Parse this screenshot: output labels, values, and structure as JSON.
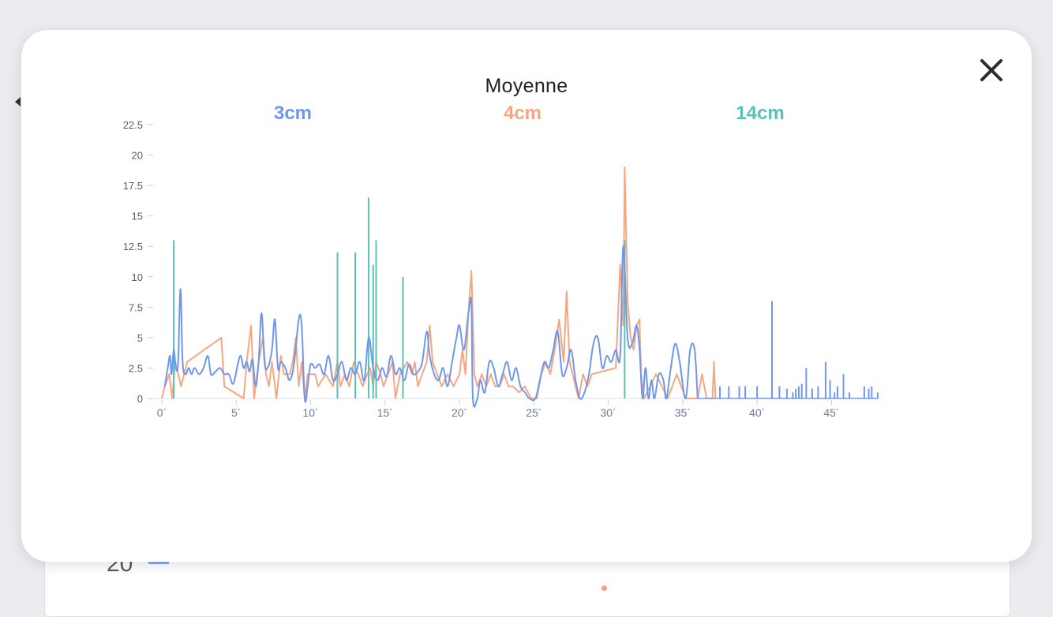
{
  "background": {
    "peek_value": "20"
  },
  "modal": {
    "close_icon": "close-icon"
  },
  "chart_data": {
    "type": "line",
    "title": "Moyenne",
    "xlabel": "",
    "ylabel": "",
    "xlim": [
      0,
      48
    ],
    "ylim": [
      0,
      22.5
    ],
    "grid": false,
    "legend_position": "top",
    "y_ticks": [
      "0",
      "2.5",
      "5",
      "7.5",
      "10",
      "12.5",
      "15",
      "17.5",
      "20",
      "22.5"
    ],
    "x_ticks": [
      "0´",
      "5´",
      "10´",
      "15´",
      "20´",
      "25´",
      "30´",
      "35´",
      "40´",
      "45´"
    ],
    "x_tick_values": [
      0,
      5,
      10,
      15,
      20,
      25,
      30,
      35,
      40,
      45
    ],
    "y_tick_values": [
      0,
      2.5,
      5,
      7.5,
      10,
      12.5,
      15,
      17.5,
      20,
      22.5
    ],
    "series": [
      {
        "name": "3cm",
        "color": "#6f97ee",
        "style": "smooth",
        "points": [
          [
            0.2,
            1
          ],
          [
            0.4,
            2.5
          ],
          [
            0.55,
            3.5
          ],
          [
            0.65,
            2
          ],
          [
            0.8,
            4
          ],
          [
            0.95,
            2.5
          ],
          [
            1.1,
            3
          ],
          [
            1.25,
            9
          ],
          [
            1.4,
            3
          ],
          [
            1.6,
            2
          ],
          [
            1.8,
            2.5
          ],
          [
            2,
            2
          ],
          [
            2.2,
            2.5
          ],
          [
            2.5,
            2
          ],
          [
            2.8,
            2.5
          ],
          [
            3.1,
            3.5
          ],
          [
            3.3,
            2
          ],
          [
            3.6,
            2.2
          ],
          [
            3.9,
            2.5
          ],
          [
            4.2,
            2
          ],
          [
            4.5,
            2
          ],
          [
            4.8,
            1.2
          ],
          [
            5.1,
            2.8
          ],
          [
            5.3,
            3.5
          ],
          [
            5.5,
            2.5
          ],
          [
            5.7,
            3
          ],
          [
            5.9,
            2.2
          ],
          [
            6.1,
            3.2
          ],
          [
            6.3,
            1
          ],
          [
            6.5,
            3
          ],
          [
            6.7,
            7
          ],
          [
            6.9,
            3
          ],
          [
            7.1,
            2.5
          ],
          [
            7.4,
            4
          ],
          [
            7.6,
            6.5
          ],
          [
            7.8,
            2.5
          ],
          [
            8,
            3
          ],
          [
            8.3,
            2.5
          ],
          [
            8.6,
            1.5
          ],
          [
            8.9,
            3
          ],
          [
            9.2,
            6.5
          ],
          [
            9.4,
            6
          ],
          [
            9.6,
            0
          ],
          [
            9.8,
            1
          ],
          [
            10,
            2.8
          ],
          [
            10.3,
            2.5
          ],
          [
            10.6,
            2.8
          ],
          [
            10.9,
            2
          ],
          [
            11.2,
            3.5
          ],
          [
            11.5,
            1.5
          ],
          [
            11.8,
            2
          ],
          [
            12.1,
            3
          ],
          [
            12.4,
            1.5
          ],
          [
            12.7,
            2.5
          ],
          [
            13,
            2
          ],
          [
            13.3,
            3
          ],
          [
            13.6,
            1.5
          ],
          [
            13.9,
            5
          ],
          [
            14.2,
            2.5
          ],
          [
            14.5,
            1.5
          ],
          [
            14.8,
            2.5
          ],
          [
            15.1,
            1.8
          ],
          [
            15.4,
            3.5
          ],
          [
            15.7,
            2
          ],
          [
            16,
            2.5
          ],
          [
            16.3,
            1.5
          ],
          [
            16.6,
            2.8
          ],
          [
            16.9,
            2
          ],
          [
            17.2,
            2.2
          ],
          [
            17.5,
            3
          ],
          [
            17.8,
            5.5
          ],
          [
            18,
            3.5
          ],
          [
            18.3,
            2
          ],
          [
            18.6,
            1.5
          ],
          [
            18.9,
            2.5
          ],
          [
            19.2,
            1
          ],
          [
            19.5,
            3
          ],
          [
            19.8,
            5
          ],
          [
            20,
            6
          ],
          [
            20.3,
            4
          ],
          [
            20.6,
            7
          ],
          [
            20.8,
            7.8
          ],
          [
            20.9,
            0
          ],
          [
            21.2,
            0
          ],
          [
            21.4,
            1.5
          ],
          [
            21.7,
            0.5
          ],
          [
            22,
            3
          ],
          [
            22.3,
            2.5
          ],
          [
            22.6,
            1
          ],
          [
            22.9,
            2
          ],
          [
            23.2,
            3
          ],
          [
            23.5,
            1.5
          ],
          [
            23.8,
            2.5
          ],
          [
            24.1,
            1
          ],
          [
            24.4,
            0.5
          ],
          [
            24.7,
            0
          ],
          [
            25.1,
            0
          ],
          [
            25.4,
            1.5
          ],
          [
            25.7,
            3
          ],
          [
            26,
            2.5
          ],
          [
            26.3,
            4
          ],
          [
            26.6,
            5.5
          ],
          [
            26.9,
            2
          ],
          [
            27.2,
            2.5
          ],
          [
            27.5,
            4
          ],
          [
            27.8,
            1.5
          ],
          [
            28.1,
            0
          ],
          [
            28.4,
            0.5
          ],
          [
            28.7,
            2
          ],
          [
            29,
            4.5
          ],
          [
            29.3,
            5
          ],
          [
            29.6,
            2.5
          ],
          [
            29.9,
            3.5
          ],
          [
            30.2,
            3
          ],
          [
            30.5,
            4
          ],
          [
            30.8,
            3.5
          ],
          [
            31,
            12.5
          ],
          [
            31.3,
            5
          ],
          [
            31.6,
            4.5
          ],
          [
            31.9,
            6
          ],
          [
            32.1,
            4
          ],
          [
            32.3,
            0
          ],
          [
            32.5,
            2.5
          ],
          [
            32.7,
            0
          ],
          [
            32.9,
            1.5
          ],
          [
            33.1,
            0
          ],
          [
            33.4,
            2
          ],
          [
            33.7,
            1.5
          ],
          [
            33.9,
            0
          ],
          [
            34.2,
            2.5
          ],
          [
            34.5,
            4.5
          ],
          [
            34.8,
            3
          ],
          [
            35.2,
            0
          ],
          [
            35.5,
            4
          ],
          [
            35.8,
            4
          ],
          [
            36,
            0
          ]
        ],
        "spikes": [
          [
            37.5,
            1
          ],
          [
            38.1,
            1
          ],
          [
            38.8,
            1
          ],
          [
            39.2,
            1
          ],
          [
            40,
            1
          ],
          [
            41,
            8
          ],
          [
            41.5,
            1
          ],
          [
            42,
            0.8
          ],
          [
            42.4,
            0.5
          ],
          [
            42.6,
            0.8
          ],
          [
            42.8,
            1
          ],
          [
            43,
            1.2
          ],
          [
            43.3,
            2.5
          ],
          [
            43.7,
            0.8
          ],
          [
            44.1,
            1
          ],
          [
            44.6,
            3
          ],
          [
            44.9,
            1.5
          ],
          [
            45.2,
            0.5
          ],
          [
            45.4,
            1
          ],
          [
            45.8,
            2
          ],
          [
            46.2,
            0.5
          ],
          [
            47.2,
            1
          ],
          [
            47.5,
            0.8
          ],
          [
            47.7,
            1
          ],
          [
            48.1,
            0.5
          ]
        ]
      },
      {
        "name": "4cm",
        "color": "#f5a783",
        "style": "sharp",
        "points": [
          [
            0,
            0
          ],
          [
            0.2,
            1
          ],
          [
            0.5,
            2
          ],
          [
            0.7,
            0
          ],
          [
            0.9,
            3
          ],
          [
            1.1,
            2
          ],
          [
            1.3,
            1
          ],
          [
            1.5,
            2
          ],
          [
            1.7,
            3
          ],
          [
            4,
            5
          ],
          [
            4.2,
            1
          ],
          [
            5.5,
            0
          ],
          [
            5.7,
            3
          ],
          [
            6,
            6
          ],
          [
            6.2,
            0
          ],
          [
            6.5,
            3
          ],
          [
            6.8,
            5
          ],
          [
            7,
            2
          ],
          [
            7.2,
            1
          ],
          [
            7.4,
            3
          ],
          [
            7.7,
            0
          ],
          [
            8,
            3.5
          ],
          [
            8.2,
            2
          ],
          [
            8.6,
            2
          ],
          [
            8.8,
            3
          ],
          [
            9,
            5
          ],
          [
            9.2,
            1
          ],
          [
            9.4,
            3
          ],
          [
            9.6,
            0
          ],
          [
            9.8,
            2
          ],
          [
            10.3,
            2
          ],
          [
            10.5,
            1
          ],
          [
            11,
            2
          ],
          [
            11.5,
            1
          ],
          [
            11.8,
            3
          ],
          [
            12,
            1
          ],
          [
            12.3,
            2
          ],
          [
            12.6,
            1
          ],
          [
            12.9,
            3
          ],
          [
            13.2,
            2
          ],
          [
            13.5,
            1
          ],
          [
            13.8,
            2
          ],
          [
            14,
            2.5
          ],
          [
            14.2,
            1
          ],
          [
            14.4,
            3
          ],
          [
            14.7,
            2
          ],
          [
            14.9,
            1
          ],
          [
            15.2,
            2
          ],
          [
            15.5,
            3
          ],
          [
            15.7,
            0
          ],
          [
            16,
            2
          ],
          [
            16.5,
            3
          ],
          [
            16.8,
            2
          ],
          [
            17,
            3
          ],
          [
            17.2,
            1
          ],
          [
            17.5,
            2
          ],
          [
            17.8,
            3
          ],
          [
            18,
            6
          ],
          [
            18.2,
            3
          ],
          [
            18.5,
            2
          ],
          [
            18.8,
            1
          ],
          [
            19.2,
            2
          ],
          [
            19.6,
            1
          ],
          [
            20,
            2
          ],
          [
            20.2,
            4
          ],
          [
            20.4,
            2
          ],
          [
            20.6,
            7
          ],
          [
            20.8,
            10.5
          ],
          [
            21,
            2
          ],
          [
            21.2,
            1
          ],
          [
            21.5,
            2
          ],
          [
            21.8,
            1
          ],
          [
            22.1,
            2
          ],
          [
            22.4,
            1
          ],
          [
            22.7,
            1
          ],
          [
            23,
            2
          ],
          [
            23.3,
            1
          ],
          [
            23.6,
            1
          ],
          [
            24,
            0.5
          ],
          [
            24.4,
            1
          ],
          [
            24.8,
            0
          ],
          [
            25.2,
            0
          ],
          [
            25.5,
            2
          ],
          [
            25.8,
            3
          ],
          [
            26.1,
            2
          ],
          [
            26.4,
            4
          ],
          [
            26.7,
            6.5
          ],
          [
            27,
            3
          ],
          [
            27.2,
            8.8
          ],
          [
            27.4,
            3
          ],
          [
            27.6,
            2
          ],
          [
            27.8,
            1
          ],
          [
            28,
            0
          ],
          [
            28.3,
            2
          ],
          [
            28.6,
            1
          ],
          [
            28.9,
            2
          ],
          [
            30.5,
            2.5
          ],
          [
            30.8,
            11
          ],
          [
            31,
            6
          ],
          [
            31.1,
            19
          ],
          [
            31.3,
            8
          ],
          [
            31.5,
            5
          ],
          [
            31.7,
            4
          ],
          [
            31.9,
            6
          ],
          [
            32.1,
            6.5
          ],
          [
            32.2,
            2
          ],
          [
            32.4,
            0
          ],
          [
            32.8,
            1
          ],
          [
            33.2,
            2
          ],
          [
            33.6,
            1
          ],
          [
            34,
            0
          ],
          [
            34.3,
            1
          ],
          [
            34.6,
            2
          ],
          [
            34.9,
            1
          ],
          [
            35.2,
            0
          ],
          [
            36,
            0
          ],
          [
            36.3,
            2
          ],
          [
            36.6,
            0
          ],
          [
            37,
            0
          ],
          [
            37.1,
            3
          ],
          [
            37.2,
            0
          ]
        ]
      },
      {
        "name": "14cm",
        "color": "#5cc0b0",
        "style": "spikes",
        "spikes": [
          [
            0.8,
            13
          ],
          [
            11.8,
            12
          ],
          [
            13,
            12
          ],
          [
            13.9,
            16.5
          ],
          [
            14.2,
            11
          ],
          [
            14.4,
            13
          ],
          [
            16.2,
            10
          ],
          [
            31.1,
            13
          ]
        ]
      }
    ]
  }
}
